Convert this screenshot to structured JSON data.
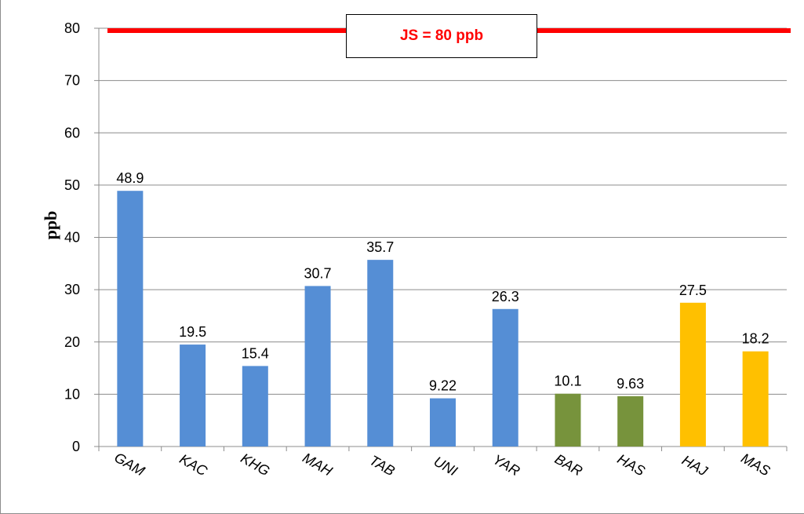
{
  "chart_data": {
    "type": "bar",
    "categories": [
      "GAM",
      "KAC",
      "KHG",
      "MAH",
      "TAB",
      "UNI",
      "YAR",
      "BAR",
      "HAS",
      "HAJ",
      "MAS"
    ],
    "values": [
      48.9,
      19.5,
      15.4,
      30.7,
      35.7,
      9.22,
      26.3,
      10.1,
      9.63,
      27.5,
      18.2
    ],
    "value_labels": [
      "48.9",
      "19.5",
      "15.4",
      "30.7",
      "35.7",
      "9.22",
      "26.3",
      "10.1",
      "9.63",
      "27.5",
      "18.2"
    ],
    "bar_colors": [
      "#558ed5",
      "#558ed5",
      "#558ed5",
      "#558ed5",
      "#558ed5",
      "#558ed5",
      "#558ed5",
      "#77933c",
      "#77933c",
      "#ffc000",
      "#ffc000"
    ],
    "ylabel": "ppb",
    "ylim": [
      0,
      80
    ],
    "yticks": [
      0,
      10,
      20,
      30,
      40,
      50,
      60,
      70,
      80
    ],
    "grid": true,
    "reference_line": {
      "value": 80,
      "label": "JS = 80 ppb",
      "color": "#ff0000"
    }
  }
}
